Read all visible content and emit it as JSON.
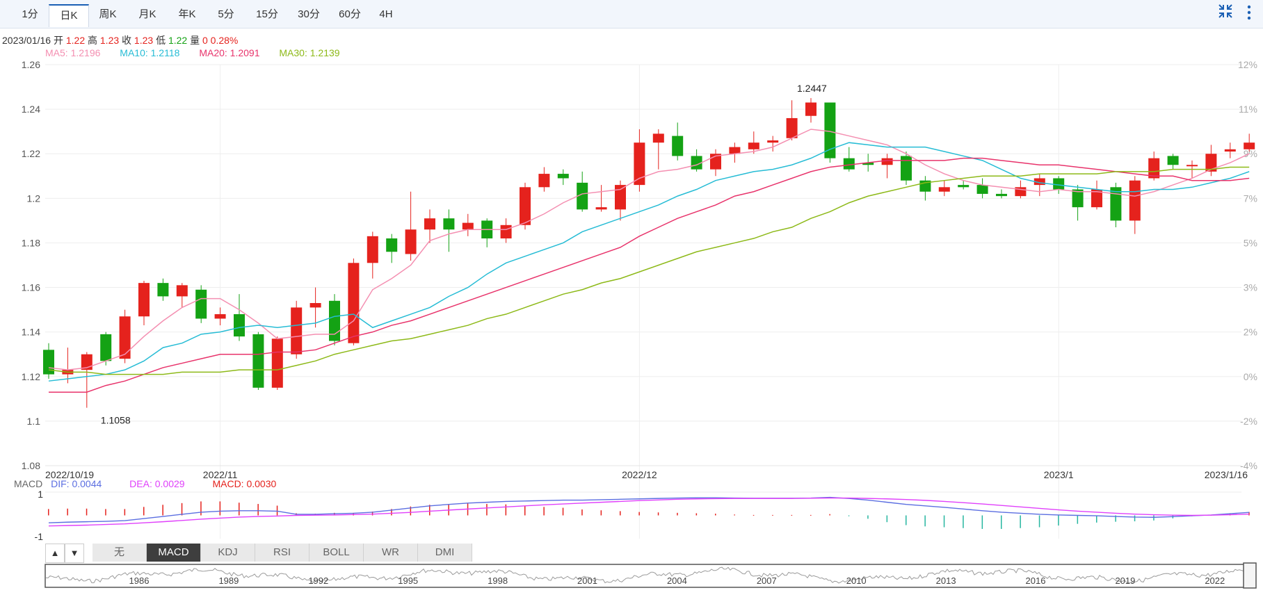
{
  "tabs": [
    {
      "label": "1分"
    },
    {
      "label": "日K"
    },
    {
      "label": "周K"
    },
    {
      "label": "月K"
    },
    {
      "label": "年K"
    },
    {
      "label": "5分"
    },
    {
      "label": "15分"
    },
    {
      "label": "30分"
    },
    {
      "label": "60分"
    },
    {
      "label": "4H"
    }
  ],
  "active_tab": "日K",
  "icons": {
    "collapse": "compress-icon",
    "more": "more-vertical-icon"
  },
  "info": {
    "date": "2023/01/16",
    "open_label": "开",
    "open": "1.22",
    "high_label": "高",
    "high": "1.23",
    "close_label": "收",
    "close": "1.23",
    "low_label": "低",
    "low": "1.22",
    "vol_label": "量",
    "vol": "0",
    "change": "0.28%"
  },
  "ma": {
    "ma5": "MA5: 1.2196",
    "ma10": "MA10: 1.2118",
    "ma20": "MA20: 1.2091",
    "ma30": "MA30: 1.2139"
  },
  "macd_header": {
    "title": "MACD",
    "dif": "DIF: 0.0044",
    "dea": "DEA: 0.0029",
    "macd": "MACD: 0.0030"
  },
  "indicator_tabs": [
    "无",
    "MACD",
    "KDJ",
    "RSI",
    "BOLL",
    "WR",
    "DMI"
  ],
  "active_indicator": "MACD",
  "colors": {
    "up": "#e5221d",
    "down": "#14a214",
    "ma5": "#f48fb1",
    "ma10": "#26bcd5",
    "ma20": "#e8336b",
    "ma30": "#8db918",
    "dif": "#5b6ee1",
    "dea": "#e040fb"
  },
  "chart_data": {
    "type": "candlestick",
    "ylim": [
      1.08,
      1.26
    ],
    "y_ticks": [
      "1.26",
      "1.24",
      "1.22",
      "1.2",
      "1.18",
      "1.16",
      "1.14",
      "1.12",
      "1.1",
      "1.08"
    ],
    "pct_ticks": [
      "12%",
      "11%",
      "9%",
      "7%",
      "5%",
      "3%",
      "2%",
      "0%",
      "-2%",
      "-4%"
    ],
    "x_labels": [
      {
        "label": "2022/10/19",
        "i": 0
      },
      {
        "label": "2022/11",
        "i": 9
      },
      {
        "label": "2022/12",
        "i": 31
      },
      {
        "label": "2023/1",
        "i": 53
      },
      {
        "label": "2023/1/16",
        "i": 62
      }
    ],
    "annotations": [
      {
        "text": "1.2447",
        "i": 40,
        "value": 1.2447
      },
      {
        "text": "1.1058",
        "i": 2,
        "value": 1.1058
      }
    ],
    "candles": [
      [
        1.132,
        1.121,
        1.135,
        1.119
      ],
      [
        1.121,
        1.123,
        1.133,
        1.117
      ],
      [
        1.123,
        1.13,
        1.131,
        1.106
      ],
      [
        1.139,
        1.127,
        1.14,
        1.125
      ],
      [
        1.128,
        1.147,
        1.15,
        1.126
      ],
      [
        1.147,
        1.162,
        1.163,
        1.143
      ],
      [
        1.162,
        1.156,
        1.164,
        1.154
      ],
      [
        1.156,
        1.161,
        1.162,
        1.151
      ],
      [
        1.159,
        1.146,
        1.161,
        1.144
      ],
      [
        1.146,
        1.148,
        1.151,
        1.143
      ],
      [
        1.148,
        1.138,
        1.157,
        1.136
      ],
      [
        1.139,
        1.115,
        1.14,
        1.114
      ],
      [
        1.115,
        1.137,
        1.138,
        1.114
      ],
      [
        1.13,
        1.151,
        1.154,
        1.128
      ],
      [
        1.151,
        1.153,
        1.16,
        1.142
      ],
      [
        1.154,
        1.136,
        1.157,
        1.134
      ],
      [
        1.135,
        1.171,
        1.173,
        1.134
      ],
      [
        1.171,
        1.183,
        1.185,
        1.164
      ],
      [
        1.182,
        1.176,
        1.184,
        1.171
      ],
      [
        1.175,
        1.186,
        1.203,
        1.172
      ],
      [
        1.186,
        1.191,
        1.195,
        1.18
      ],
      [
        1.191,
        1.186,
        1.195,
        1.176
      ],
      [
        1.186,
        1.189,
        1.193,
        1.183
      ],
      [
        1.19,
        1.182,
        1.191,
        1.178
      ],
      [
        1.182,
        1.188,
        1.191,
        1.18
      ],
      [
        1.188,
        1.205,
        1.207,
        1.186
      ],
      [
        1.205,
        1.211,
        1.214,
        1.203
      ],
      [
        1.211,
        1.209,
        1.213,
        1.206
      ],
      [
        1.207,
        1.195,
        1.212,
        1.194
      ],
      [
        1.195,
        1.196,
        1.206,
        1.194
      ],
      [
        1.195,
        1.206,
        1.208,
        1.19
      ],
      [
        1.206,
        1.225,
        1.231,
        1.203
      ],
      [
        1.225,
        1.229,
        1.231,
        1.213
      ],
      [
        1.228,
        1.219,
        1.234,
        1.217
      ],
      [
        1.219,
        1.213,
        1.222,
        1.212
      ],
      [
        1.213,
        1.22,
        1.222,
        1.21
      ],
      [
        1.22,
        1.223,
        1.225,
        1.216
      ],
      [
        1.222,
        1.225,
        1.23,
        1.22
      ],
      [
        1.225,
        1.226,
        1.228,
        1.221
      ],
      [
        1.227,
        1.236,
        1.244,
        1.226
      ],
      [
        1.237,
        1.243,
        1.245,
        1.234
      ],
      [
        1.243,
        1.218,
        1.243,
        1.216
      ],
      [
        1.218,
        1.213,
        1.223,
        1.212
      ],
      [
        1.216,
        1.215,
        1.22,
        1.212
      ],
      [
        1.215,
        1.218,
        1.22,
        1.209
      ],
      [
        1.219,
        1.208,
        1.221,
        1.206
      ],
      [
        1.208,
        1.203,
        1.21,
        1.199
      ],
      [
        1.203,
        1.205,
        1.208,
        1.201
      ],
      [
        1.206,
        1.205,
        1.208,
        1.204
      ],
      [
        1.206,
        1.202,
        1.209,
        1.2
      ],
      [
        1.202,
        1.201,
        1.204,
        1.2
      ],
      [
        1.201,
        1.205,
        1.208,
        1.2
      ],
      [
        1.206,
        1.209,
        1.211,
        1.201
      ],
      [
        1.209,
        1.204,
        1.21,
        1.202
      ],
      [
        1.204,
        1.196,
        1.206,
        1.19
      ],
      [
        1.196,
        1.204,
        1.208,
        1.195
      ],
      [
        1.205,
        1.19,
        1.207,
        1.187
      ],
      [
        1.19,
        1.208,
        1.21,
        1.184
      ],
      [
        1.209,
        1.218,
        1.221,
        1.208
      ],
      [
        1.219,
        1.215,
        1.22,
        1.213
      ],
      [
        1.215,
        1.215,
        1.217,
        1.209
      ],
      [
        1.212,
        1.22,
        1.224,
        1.21
      ],
      [
        1.221,
        1.222,
        1.225,
        1.218
      ],
      [
        1.222,
        1.225,
        1.229,
        1.221
      ]
    ],
    "ma5": [
      1.124,
      1.123,
      1.124,
      1.127,
      1.13,
      1.138,
      1.145,
      1.151,
      1.155,
      1.155,
      1.15,
      1.144,
      1.137,
      1.138,
      1.139,
      1.139,
      1.145,
      1.159,
      1.164,
      1.17,
      1.181,
      1.184,
      1.186,
      1.186,
      1.186,
      1.189,
      1.193,
      1.198,
      1.202,
      1.203,
      1.204,
      1.209,
      1.212,
      1.213,
      1.215,
      1.219,
      1.22,
      1.221,
      1.223,
      1.227,
      1.231,
      1.23,
      1.228,
      1.226,
      1.224,
      1.22,
      1.215,
      1.211,
      1.208,
      1.206,
      1.205,
      1.204,
      1.203,
      1.204,
      1.203,
      1.203,
      1.202,
      1.201,
      1.203,
      1.206,
      1.209,
      1.213,
      1.216,
      1.22
    ],
    "ma10": [
      1.118,
      1.119,
      1.12,
      1.121,
      1.123,
      1.127,
      1.133,
      1.135,
      1.139,
      1.14,
      1.142,
      1.143,
      1.142,
      1.143,
      1.144,
      1.147,
      1.148,
      1.142,
      1.145,
      1.148,
      1.151,
      1.156,
      1.16,
      1.166,
      1.171,
      1.174,
      1.177,
      1.18,
      1.185,
      1.188,
      1.191,
      1.194,
      1.197,
      1.201,
      1.204,
      1.208,
      1.21,
      1.212,
      1.213,
      1.215,
      1.218,
      1.222,
      1.225,
      1.224,
      1.223,
      1.223,
      1.223,
      1.221,
      1.219,
      1.217,
      1.213,
      1.209,
      1.207,
      1.206,
      1.205,
      1.204,
      1.203,
      1.203,
      1.204,
      1.204,
      1.205,
      1.207,
      1.209,
      1.212
    ],
    "ma20": [
      1.113,
      1.113,
      1.113,
      1.116,
      1.118,
      1.121,
      1.124,
      1.126,
      1.128,
      1.13,
      1.13,
      1.13,
      1.131,
      1.131,
      1.132,
      1.135,
      1.138,
      1.14,
      1.143,
      1.145,
      1.148,
      1.151,
      1.154,
      1.157,
      1.16,
      1.163,
      1.166,
      1.169,
      1.172,
      1.175,
      1.178,
      1.183,
      1.187,
      1.191,
      1.194,
      1.197,
      1.201,
      1.203,
      1.206,
      1.209,
      1.212,
      1.214,
      1.215,
      1.216,
      1.217,
      1.217,
      1.217,
      1.217,
      1.218,
      1.218,
      1.217,
      1.216,
      1.215,
      1.215,
      1.214,
      1.213,
      1.212,
      1.211,
      1.21,
      1.21,
      1.208,
      1.208,
      1.208,
      1.209
    ],
    "ma30": [
      1.123,
      1.122,
      1.122,
      1.121,
      1.121,
      1.121,
      1.121,
      1.122,
      1.122,
      1.122,
      1.123,
      1.123,
      1.123,
      1.125,
      1.127,
      1.13,
      1.132,
      1.134,
      1.136,
      1.137,
      1.139,
      1.141,
      1.143,
      1.146,
      1.148,
      1.151,
      1.154,
      1.157,
      1.159,
      1.162,
      1.164,
      1.167,
      1.17,
      1.173,
      1.176,
      1.178,
      1.18,
      1.182,
      1.185,
      1.187,
      1.191,
      1.194,
      1.198,
      1.201,
      1.203,
      1.205,
      1.207,
      1.208,
      1.209,
      1.21,
      1.21,
      1.21,
      1.211,
      1.211,
      1.211,
      1.211,
      1.212,
      1.212,
      1.212,
      1.213,
      1.213,
      1.213,
      1.214,
      1.214
    ],
    "macd": {
      "ylim": [
        -1.1,
        1.1
      ],
      "y_ticks": [
        "1",
        "-1"
      ],
      "dif": [
        -0.35,
        -0.32,
        -0.3,
        -0.28,
        -0.25,
        -0.15,
        -0.05,
        0.05,
        0.15,
        0.2,
        0.22,
        0.22,
        0.2,
        0.05,
        0.05,
        0.08,
        0.1,
        0.15,
        0.25,
        0.35,
        0.45,
        0.52,
        0.58,
        0.62,
        0.66,
        0.68,
        0.7,
        0.72,
        0.72,
        0.74,
        0.76,
        0.78,
        0.8,
        0.82,
        0.83,
        0.83,
        0.82,
        0.81,
        0.81,
        0.81,
        0.82,
        0.85,
        0.8,
        0.72,
        0.62,
        0.52,
        0.45,
        0.38,
        0.3,
        0.22,
        0.15,
        0.1,
        0.05,
        0.02,
        0.0,
        -0.02,
        -0.05,
        -0.08,
        -0.09,
        -0.06,
        -0.02,
        0.02,
        0.08,
        0.14
      ],
      "dea": [
        -0.5,
        -0.48,
        -0.46,
        -0.43,
        -0.4,
        -0.35,
        -0.3,
        -0.24,
        -0.18,
        -0.13,
        -0.08,
        -0.05,
        -0.03,
        0.0,
        0.01,
        0.02,
        0.04,
        0.06,
        0.1,
        0.14,
        0.2,
        0.25,
        0.3,
        0.35,
        0.4,
        0.45,
        0.5,
        0.54,
        0.58,
        0.62,
        0.66,
        0.7,
        0.73,
        0.76,
        0.78,
        0.79,
        0.8,
        0.8,
        0.8,
        0.8,
        0.81,
        0.82,
        0.82,
        0.8,
        0.78,
        0.75,
        0.71,
        0.66,
        0.6,
        0.54,
        0.47,
        0.4,
        0.33,
        0.26,
        0.2,
        0.15,
        0.1,
        0.06,
        0.03,
        0.01,
        0.0,
        0.01,
        0.03,
        0.06
      ],
      "hist": [
        0.3,
        0.32,
        0.32,
        0.3,
        0.3,
        0.4,
        0.5,
        0.58,
        0.66,
        0.66,
        0.6,
        0.54,
        0.46,
        0.1,
        0.08,
        0.12,
        0.12,
        0.18,
        0.3,
        0.42,
        0.5,
        0.54,
        0.56,
        0.54,
        0.52,
        0.46,
        0.4,
        0.36,
        0.28,
        0.24,
        0.2,
        0.16,
        0.14,
        0.12,
        0.1,
        0.08,
        0.04,
        0.02,
        0.02,
        0.02,
        0.02,
        0.06,
        -0.04,
        -0.16,
        -0.32,
        -0.46,
        -0.52,
        -0.56,
        -0.6,
        -0.64,
        -0.64,
        -0.6,
        -0.56,
        -0.48,
        -0.4,
        -0.34,
        -0.3,
        -0.28,
        -0.24,
        -0.14,
        -0.04,
        0.02,
        0.1,
        0.16
      ]
    },
    "navigator": {
      "years": [
        "1986",
        "1989",
        "1992",
        "1995",
        "1998",
        "2001",
        "2004",
        "2007",
        "2010",
        "2013",
        "2016",
        "2019",
        "2022"
      ]
    }
  }
}
